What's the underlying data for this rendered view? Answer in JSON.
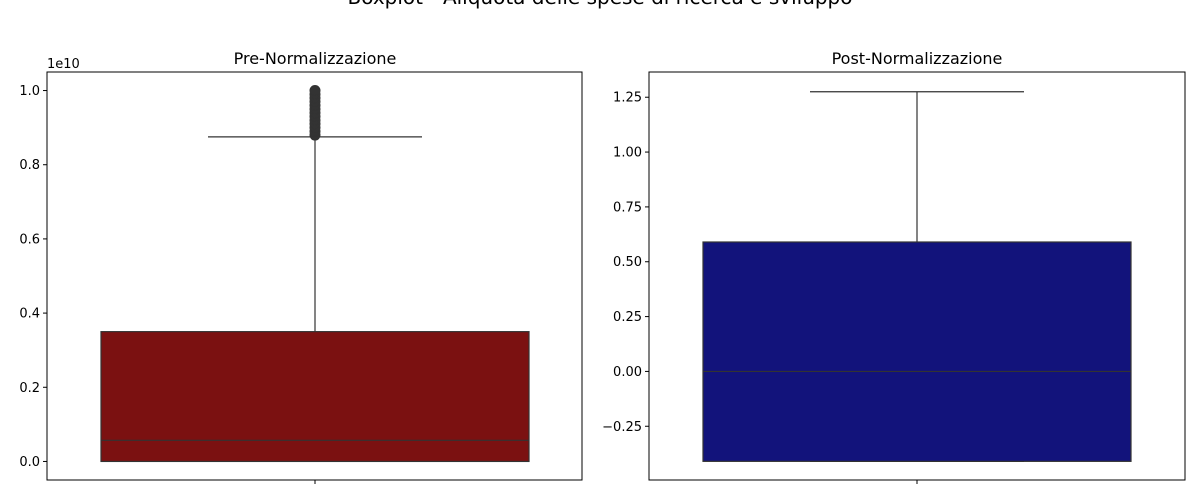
{
  "suptitle": "Boxplot - Aliquota delle spese di ricerca e sviluppo",
  "chart_data": [
    {
      "type": "box",
      "title": "Pre-Normalizzazione",
      "offset_label": "1e10",
      "scale": 10000000000,
      "color": "#7b1111",
      "ylim": [
        -500000000.0,
        10500000000.0
      ],
      "yticks": [
        0.0,
        0.2,
        0.4,
        0.6,
        0.8,
        1.0
      ],
      "ytick_labels": [
        "0.0",
        "0.2",
        "0.4",
        "0.6",
        "0.8",
        "1.0"
      ],
      "box": {
        "whisker_low": 0,
        "q1": 0,
        "median": 570000000.0,
        "q3": 3500000000.0,
        "whisker_high": 8750000000.0
      },
      "outliers": [
        8800000000.0,
        8900000000.0,
        9000000000.0,
        9100000000.0,
        9200000000.0,
        9300000000.0,
        9400000000.0,
        9500000000.0,
        9600000000.0,
        9700000000.0,
        9800000000.0,
        9900000000.0,
        10000000000.0
      ]
    },
    {
      "type": "box",
      "title": "Post-Normalizzazione",
      "offset_label": "",
      "scale": 1,
      "color": "#12137b",
      "ylim": [
        -0.495,
        1.365
      ],
      "yticks": [
        -0.25,
        0.0,
        0.25,
        0.5,
        0.75,
        1.0,
        1.25
      ],
      "ytick_labels": [
        "−0.25",
        "0.00",
        "0.25",
        "0.50",
        "0.75",
        "1.00",
        "1.25"
      ],
      "box": {
        "whisker_low": -0.41,
        "q1": -0.41,
        "median": 0.0,
        "q3": 0.59,
        "whisker_high": 1.275
      },
      "outliers": []
    }
  ]
}
